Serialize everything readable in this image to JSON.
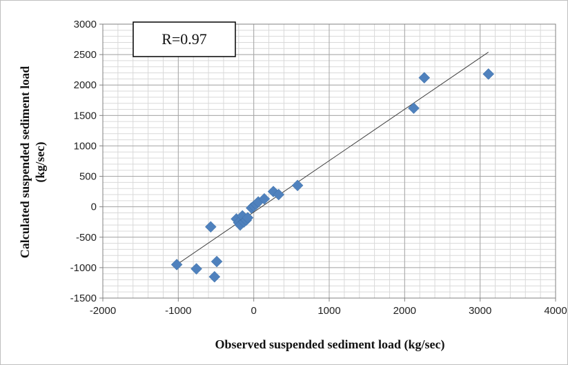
{
  "chart_data": {
    "type": "scatter",
    "title": "",
    "xlabel": "Observed suspended sediment load (kg/sec)",
    "ylabel": "Calculated suspended sediment load",
    "ylabel_unit": "(kg/sec)",
    "xlim": [
      -2000,
      4000
    ],
    "ylim": [
      -1500,
      3000
    ],
    "x_ticks": [
      -2000,
      -1000,
      0,
      1000,
      2000,
      3000,
      4000
    ],
    "y_ticks": [
      -1500,
      -1000,
      -500,
      0,
      500,
      1000,
      1500,
      2000,
      2500,
      3000
    ],
    "grid": true,
    "annotation": "R=0.97",
    "marker_color": "#4F81BD",
    "trendline_color": "#404040",
    "points": [
      {
        "x": -1020,
        "y": -950
      },
      {
        "x": -760,
        "y": -1020
      },
      {
        "x": -520,
        "y": -1150
      },
      {
        "x": -490,
        "y": -900
      },
      {
        "x": -570,
        "y": -330
      },
      {
        "x": -230,
        "y": -200
      },
      {
        "x": -200,
        "y": -260
      },
      {
        "x": -180,
        "y": -300
      },
      {
        "x": -150,
        "y": -150
      },
      {
        "x": -130,
        "y": -250
      },
      {
        "x": -100,
        "y": -220
      },
      {
        "x": -80,
        "y": -180
      },
      {
        "x": -30,
        "y": -20
      },
      {
        "x": 0,
        "y": 10
      },
      {
        "x": 30,
        "y": 40
      },
      {
        "x": 60,
        "y": 80
      },
      {
        "x": 140,
        "y": 130
      },
      {
        "x": 260,
        "y": 250
      },
      {
        "x": 330,
        "y": 200
      },
      {
        "x": 580,
        "y": 350
      },
      {
        "x": 2120,
        "y": 1620
      },
      {
        "x": 2260,
        "y": 2120
      },
      {
        "x": 3110,
        "y": 2180
      }
    ],
    "trendline": {
      "x": [
        -1020,
        3110
      ],
      "y": [
        -950,
        2540
      ]
    }
  }
}
